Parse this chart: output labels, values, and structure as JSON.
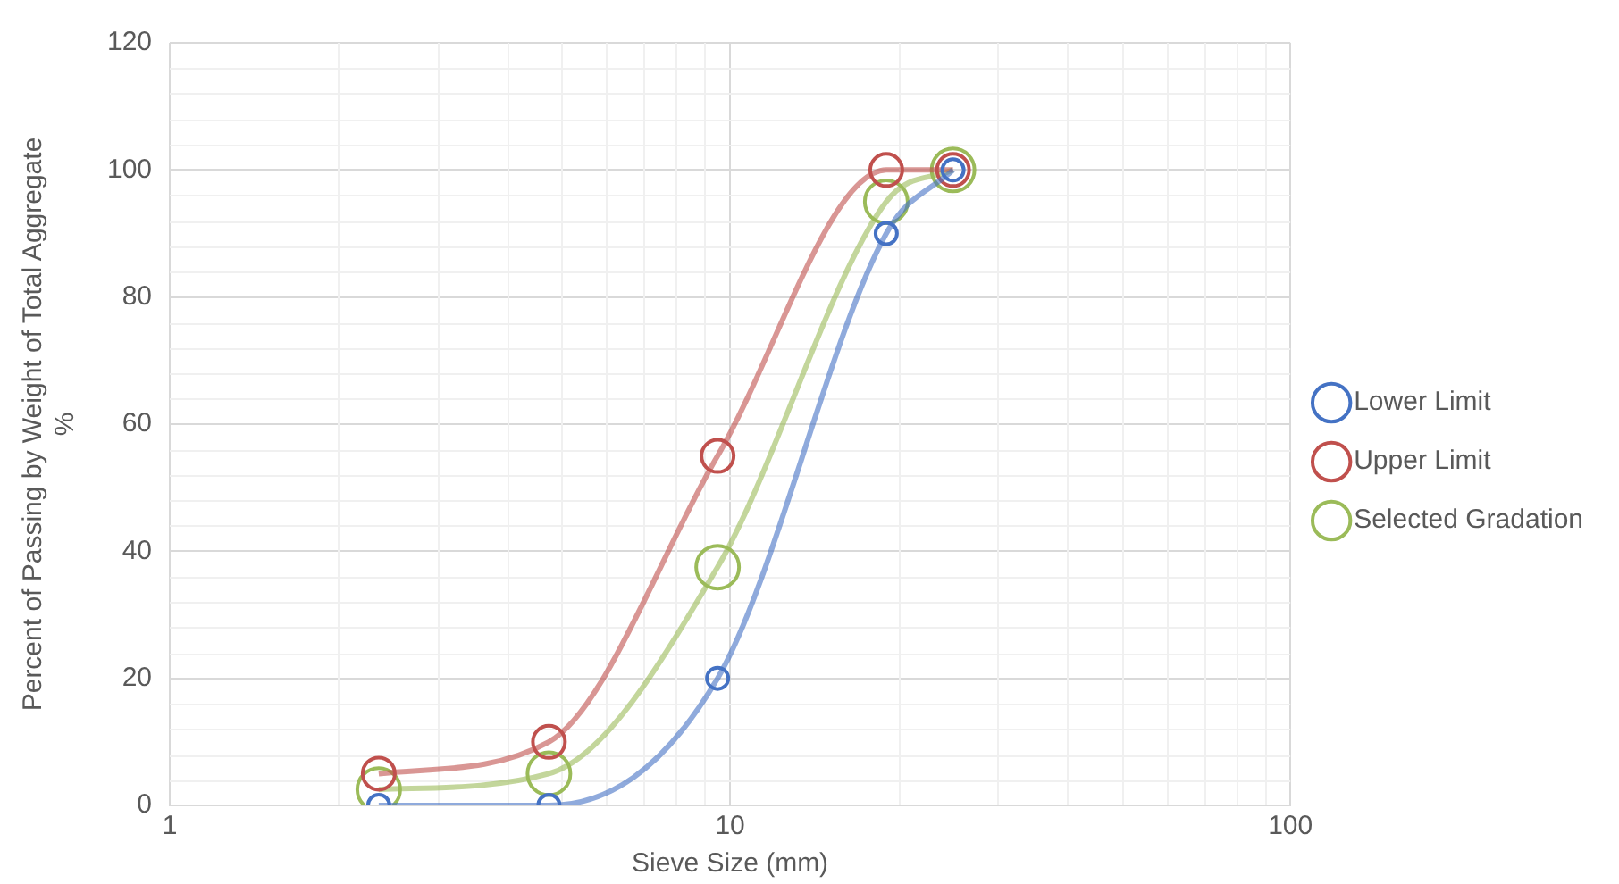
{
  "chart_data": {
    "type": "line",
    "xlabel": "Sieve Size (mm)",
    "ylabel": "Percent of Passing by Weight of Total Aggregate\n%",
    "x": [
      2.36,
      4.75,
      9.5,
      19,
      25
    ],
    "series": [
      {
        "name": "Lower Limit",
        "color": "#4472c4",
        "values": [
          0,
          0,
          20,
          90,
          100
        ]
      },
      {
        "name": "Upper Limit",
        "color": "#c0504d",
        "values": [
          5,
          10,
          55,
          100,
          100
        ]
      },
      {
        "name": "Selected Gradation",
        "color": "#9bbb59",
        "values": [
          2.5,
          5,
          37.5,
          95,
          100
        ]
      }
    ],
    "log": "x",
    "xlim": [
      1,
      100
    ],
    "xticks": [
      1,
      10,
      100
    ],
    "ylim": [
      0,
      120
    ],
    "yticks": [
      0,
      20,
      40,
      60,
      80,
      100,
      120
    ],
    "grid": true,
    "legend": "right",
    "marker": "circle",
    "line_style": "solid"
  }
}
